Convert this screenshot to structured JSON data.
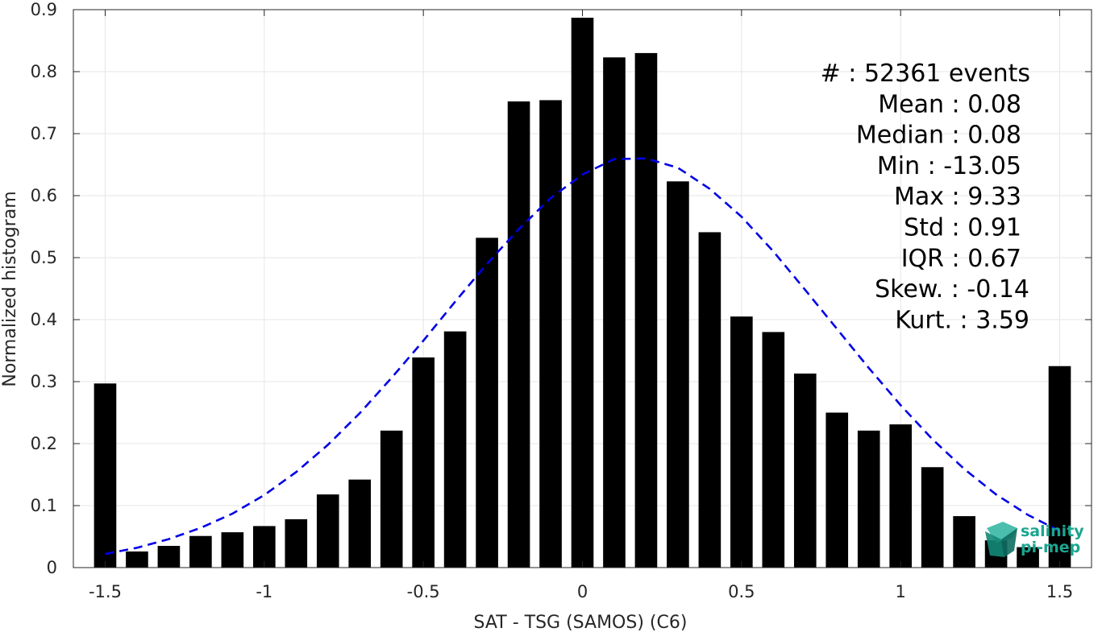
{
  "chart_data": {
    "type": "bar",
    "xlabel": "SAT - TSG (SAMOS) (C6)",
    "ylabel": "Normalized histogram",
    "xlim": [
      -1.6,
      1.6
    ],
    "ylim": [
      0,
      0.9
    ],
    "xticks": [
      -1.5,
      -1,
      -0.5,
      0,
      0.5,
      1,
      1.5
    ],
    "xtick_labels": [
      "-1.5",
      "-1",
      "-0.5",
      "0",
      "0.5",
      "1",
      "1.5"
    ],
    "yticks": [
      0,
      0.1,
      0.2,
      0.3,
      0.4,
      0.5,
      0.6,
      0.7,
      0.8,
      0.9
    ],
    "ytick_labels": [
      "0",
      "0.1",
      "0.2",
      "0.3",
      "0.4",
      "0.5",
      "0.6",
      "0.7",
      "0.8",
      "0.9"
    ],
    "grid": true,
    "bar_color": "#000000",
    "bar_width": 0.07,
    "x": [
      -1.5,
      -1.4,
      -1.3,
      -1.2,
      -1.1,
      -1.0,
      -0.9,
      -0.8,
      -0.7,
      -0.6,
      -0.5,
      -0.4,
      -0.3,
      -0.2,
      -0.1,
      0.0,
      0.1,
      0.2,
      0.3,
      0.4,
      0.5,
      0.6,
      0.7,
      0.8,
      0.9,
      1.0,
      1.1,
      1.2,
      1.3,
      1.4,
      1.5
    ],
    "values": [
      0.297,
      0.026,
      0.035,
      0.051,
      0.057,
      0.067,
      0.078,
      0.118,
      0.142,
      0.221,
      0.339,
      0.381,
      0.532,
      0.752,
      0.754,
      0.887,
      0.823,
      0.83,
      0.623,
      0.541,
      0.405,
      0.38,
      0.313,
      0.25,
      0.221,
      0.231,
      0.162,
      0.083,
      0.044,
      0.033,
      0.325
    ],
    "fit_curve": {
      "style": "dashed",
      "color": "#0000e6",
      "x": [
        -1.5,
        -1.4,
        -1.3,
        -1.2,
        -1.1,
        -1.0,
        -0.9,
        -0.8,
        -0.7,
        -0.6,
        -0.5,
        -0.4,
        -0.3,
        -0.2,
        -0.1,
        0.0,
        0.1,
        0.2,
        0.3,
        0.4,
        0.5,
        0.6,
        0.7,
        0.8,
        0.9,
        1.0,
        1.1,
        1.2,
        1.3,
        1.4,
        1.5
      ],
      "y": [
        0.022,
        0.032,
        0.046,
        0.064,
        0.087,
        0.117,
        0.154,
        0.198,
        0.249,
        0.306,
        0.366,
        0.429,
        0.49,
        0.546,
        0.596,
        0.634,
        0.659,
        0.66,
        0.645,
        0.611,
        0.566,
        0.51,
        0.448,
        0.385,
        0.322,
        0.262,
        0.207,
        0.159,
        0.118,
        0.085,
        0.059
      ]
    },
    "annotations": [
      {
        "label": "#  : 52361 events"
      },
      {
        "label": "Mean : 0.08"
      },
      {
        "label": "Median : 0.08"
      },
      {
        "label": "Min : -13.05"
      },
      {
        "label": "Max : 9.33"
      },
      {
        "label": "Std : 0.91"
      },
      {
        "label": "IQR : 0.67"
      },
      {
        "label": "Skew. : -0.14"
      },
      {
        "label": "Kurt. : 3.59"
      }
    ]
  },
  "logo": {
    "line1": "salinity",
    "line2": "pi-mep",
    "color": "#1aa58f"
  }
}
